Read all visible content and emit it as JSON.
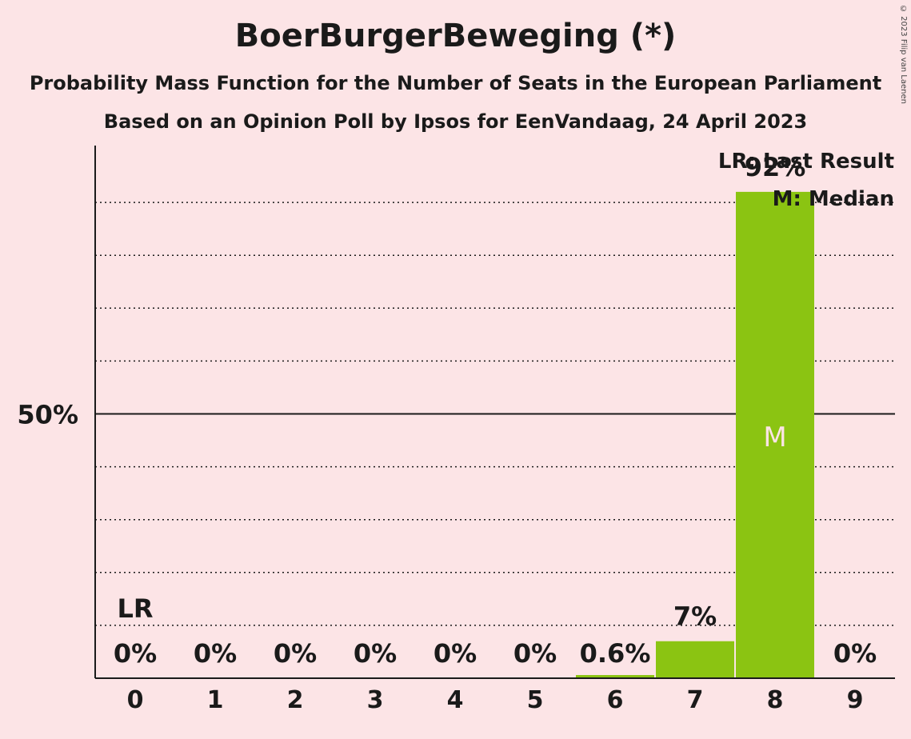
{
  "title": "BoerBurgerBeweging (*)",
  "subtitle1": "Probability Mass Function for the Number of Seats in the European Parliament",
  "subtitle2": "Based on an Opinion Poll by Ipsos for EenVandaag, 24 April 2023",
  "copyright": "© 2023 Filip van Laenen",
  "legend": {
    "lr": "LR: Last Result",
    "median": "M: Median"
  },
  "colors": {
    "background": "#fce4e6",
    "bar": "#8bc412"
  },
  "chart_data": {
    "type": "bar",
    "categories": [
      "0",
      "1",
      "2",
      "3",
      "4",
      "5",
      "6",
      "7",
      "8",
      "9"
    ],
    "values": [
      0,
      0,
      0,
      0,
      0,
      0,
      0.6,
      7,
      92,
      0
    ],
    "value_labels": [
      "0%",
      "0%",
      "0%",
      "0%",
      "0%",
      "0%",
      "0.6%",
      "7%",
      "92%",
      "0%"
    ],
    "ylim": [
      0,
      100
    ],
    "y_tick_label": "50%",
    "y_tick_value": 50,
    "last_result_category": "0",
    "last_result_marker": "LR",
    "median_category": "8",
    "median_marker": "M",
    "grid": "dotted every 10%"
  }
}
